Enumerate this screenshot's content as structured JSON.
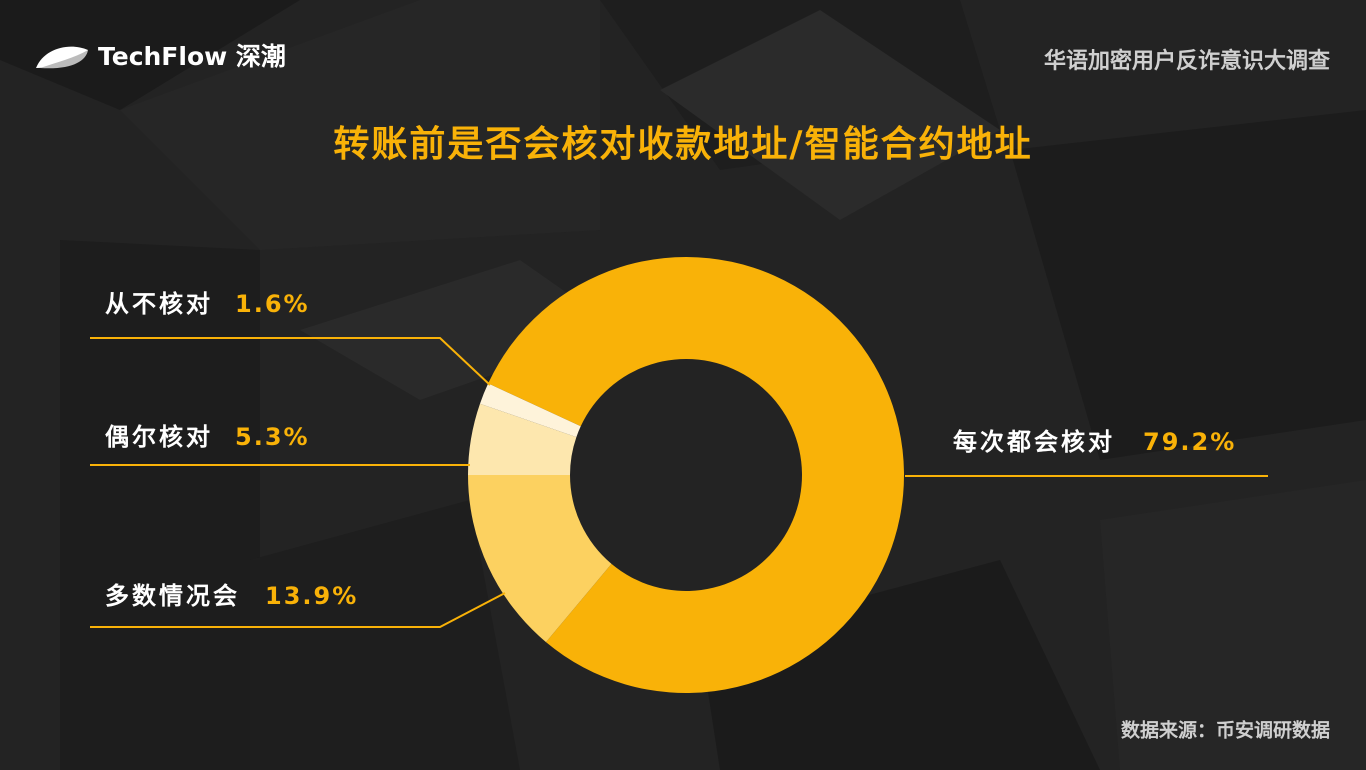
{
  "header": {
    "logo": "TechFlow 深潮",
    "report": "华语加密用户反诈意识大调查"
  },
  "chart_data": {
    "type": "donut",
    "title": "转账前是否会核对收款地址/智能合约地址",
    "categories": [
      "每次都会核对",
      "多数情况会",
      "偶尔核对",
      "从不核对"
    ],
    "values": [
      79.2,
      13.9,
      5.3,
      1.6
    ],
    "value_labels": [
      "79.2%",
      "13.9%",
      "5.3%",
      "1.6%"
    ],
    "colors": [
      "#f9b208",
      "#fcd160",
      "#fde7ae",
      "#fef3da"
    ],
    "value_label_color": "#f9b208"
  },
  "source": "数据来源：币安调研数据"
}
